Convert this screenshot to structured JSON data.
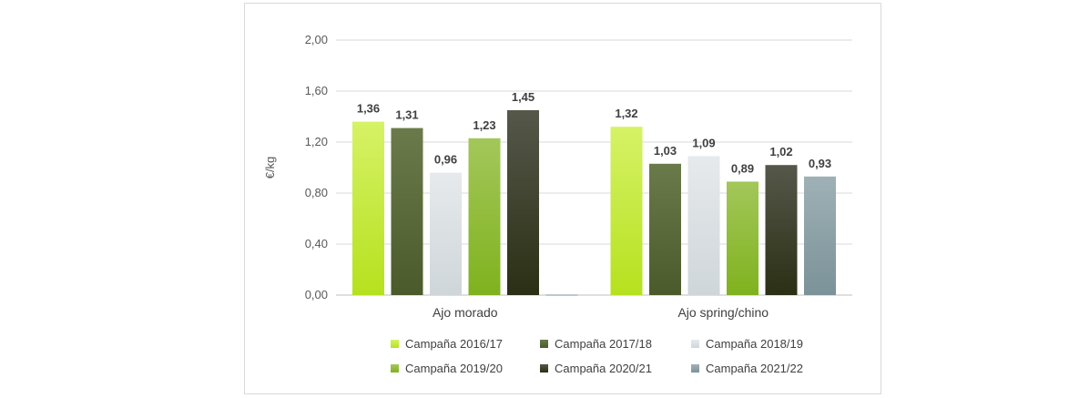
{
  "chart_data": {
    "type": "bar",
    "ylabel": "€/kg",
    "ylim": [
      0,
      2
    ],
    "yticks": [
      0,
      0.4,
      0.8,
      1.2,
      1.6,
      2.0
    ],
    "ytick_labels": [
      "0,00",
      "0,40",
      "0,80",
      "1,20",
      "1,60",
      "2,00"
    ],
    "categories": [
      "Ajo morado",
      "Ajo spring/chino"
    ],
    "grid": true,
    "legend_position": "bottom",
    "series": [
      {
        "name": "Campaña 2016/17",
        "values": [
          1.36,
          1.32
        ],
        "labels": [
          "1,36",
          "1,32"
        ],
        "color_top": "#d6f266",
        "color_bottom": "#b6e11e"
      },
      {
        "name": "Campaña 2017/18",
        "values": [
          1.31,
          1.03
        ],
        "labels": [
          "1,31",
          "1,03"
        ],
        "color_top": "#6b7a4b",
        "color_bottom": "#4a5a2a"
      },
      {
        "name": "Campaña 2018/19",
        "values": [
          0.96,
          1.09
        ],
        "labels": [
          "0,96",
          "1,09"
        ],
        "color_top": "#e6eaec",
        "color_bottom": "#cfd6d9"
      },
      {
        "name": "Campaña 2019/20",
        "values": [
          1.23,
          0.89
        ],
        "labels": [
          "1,23",
          "0,89"
        ],
        "color_top": "#a3c75a",
        "color_bottom": "#7fb21e"
      },
      {
        "name": "Campaña 2020/21",
        "values": [
          1.45,
          1.02
        ],
        "labels": [
          "1,45",
          "1,02"
        ],
        "color_top": "#55584a",
        "color_bottom": "#2b2f14"
      },
      {
        "name": "Campaña 2021/22",
        "values": [
          0,
          0.93
        ],
        "labels": [
          "",
          "0,93"
        ],
        "color_top": "#9fb1b6",
        "color_bottom": "#7a9298"
      }
    ]
  }
}
